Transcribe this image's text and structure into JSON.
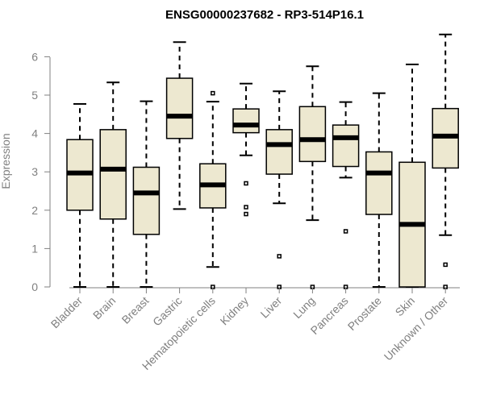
{
  "chart_data": {
    "type": "box",
    "title": "ENSG00000237682 - RP3-514P16.1",
    "ylabel": "Expression",
    "xlabel": "",
    "ylim": [
      0,
      6.6
    ],
    "yticks": [
      0,
      1,
      2,
      3,
      4,
      5,
      6
    ],
    "box_fill": "#ede8d0",
    "grid": false,
    "categories": [
      "Bladder",
      "Brain",
      "Breast",
      "Gastric",
      "Hematopoietic cells",
      "Kidney",
      "Liver",
      "Lung",
      "Pancreas",
      "Prostate",
      "Skin",
      "Unknown / Other"
    ],
    "boxes": [
      {
        "min": 0.0,
        "q1": 2.0,
        "median": 2.97,
        "q3": 3.84,
        "max": 4.77,
        "outliers": []
      },
      {
        "min": 0.0,
        "q1": 1.77,
        "median": 3.07,
        "q3": 4.1,
        "max": 5.33,
        "outliers": []
      },
      {
        "min": 0.0,
        "q1": 1.37,
        "median": 2.45,
        "q3": 3.12,
        "max": 4.84,
        "outliers": []
      },
      {
        "min": 2.03,
        "q1": 3.87,
        "median": 4.45,
        "q3": 5.44,
        "max": 6.38,
        "outliers": []
      },
      {
        "min": 0.52,
        "q1": 2.06,
        "median": 2.66,
        "q3": 3.21,
        "max": 4.83,
        "outliers": [
          5.05,
          0.0
        ]
      },
      {
        "min": 3.43,
        "q1": 4.02,
        "median": 4.22,
        "q3": 4.64,
        "max": 5.3,
        "outliers": [
          2.7,
          2.08,
          1.9
        ]
      },
      {
        "min": 2.18,
        "q1": 2.94,
        "median": 3.71,
        "q3": 4.1,
        "max": 5.1,
        "outliers": [
          0.8,
          0.0
        ]
      },
      {
        "min": 1.74,
        "q1": 3.27,
        "median": 3.84,
        "q3": 4.7,
        "max": 5.75,
        "outliers": [
          0.0
        ]
      },
      {
        "min": 2.85,
        "q1": 3.14,
        "median": 3.89,
        "q3": 4.22,
        "max": 4.82,
        "outliers": [
          1.45,
          0.0
        ]
      },
      {
        "min": 0.0,
        "q1": 1.89,
        "median": 2.97,
        "q3": 3.52,
        "max": 5.05,
        "outliers": []
      },
      {
        "min": 0.0,
        "q1": 0.0,
        "median": 1.63,
        "q3": 3.25,
        "max": 5.8,
        "outliers": []
      },
      {
        "min": 1.35,
        "q1": 3.1,
        "median": 3.93,
        "q3": 4.65,
        "max": 6.58,
        "outliers": [
          0.58,
          0.0
        ]
      }
    ]
  }
}
